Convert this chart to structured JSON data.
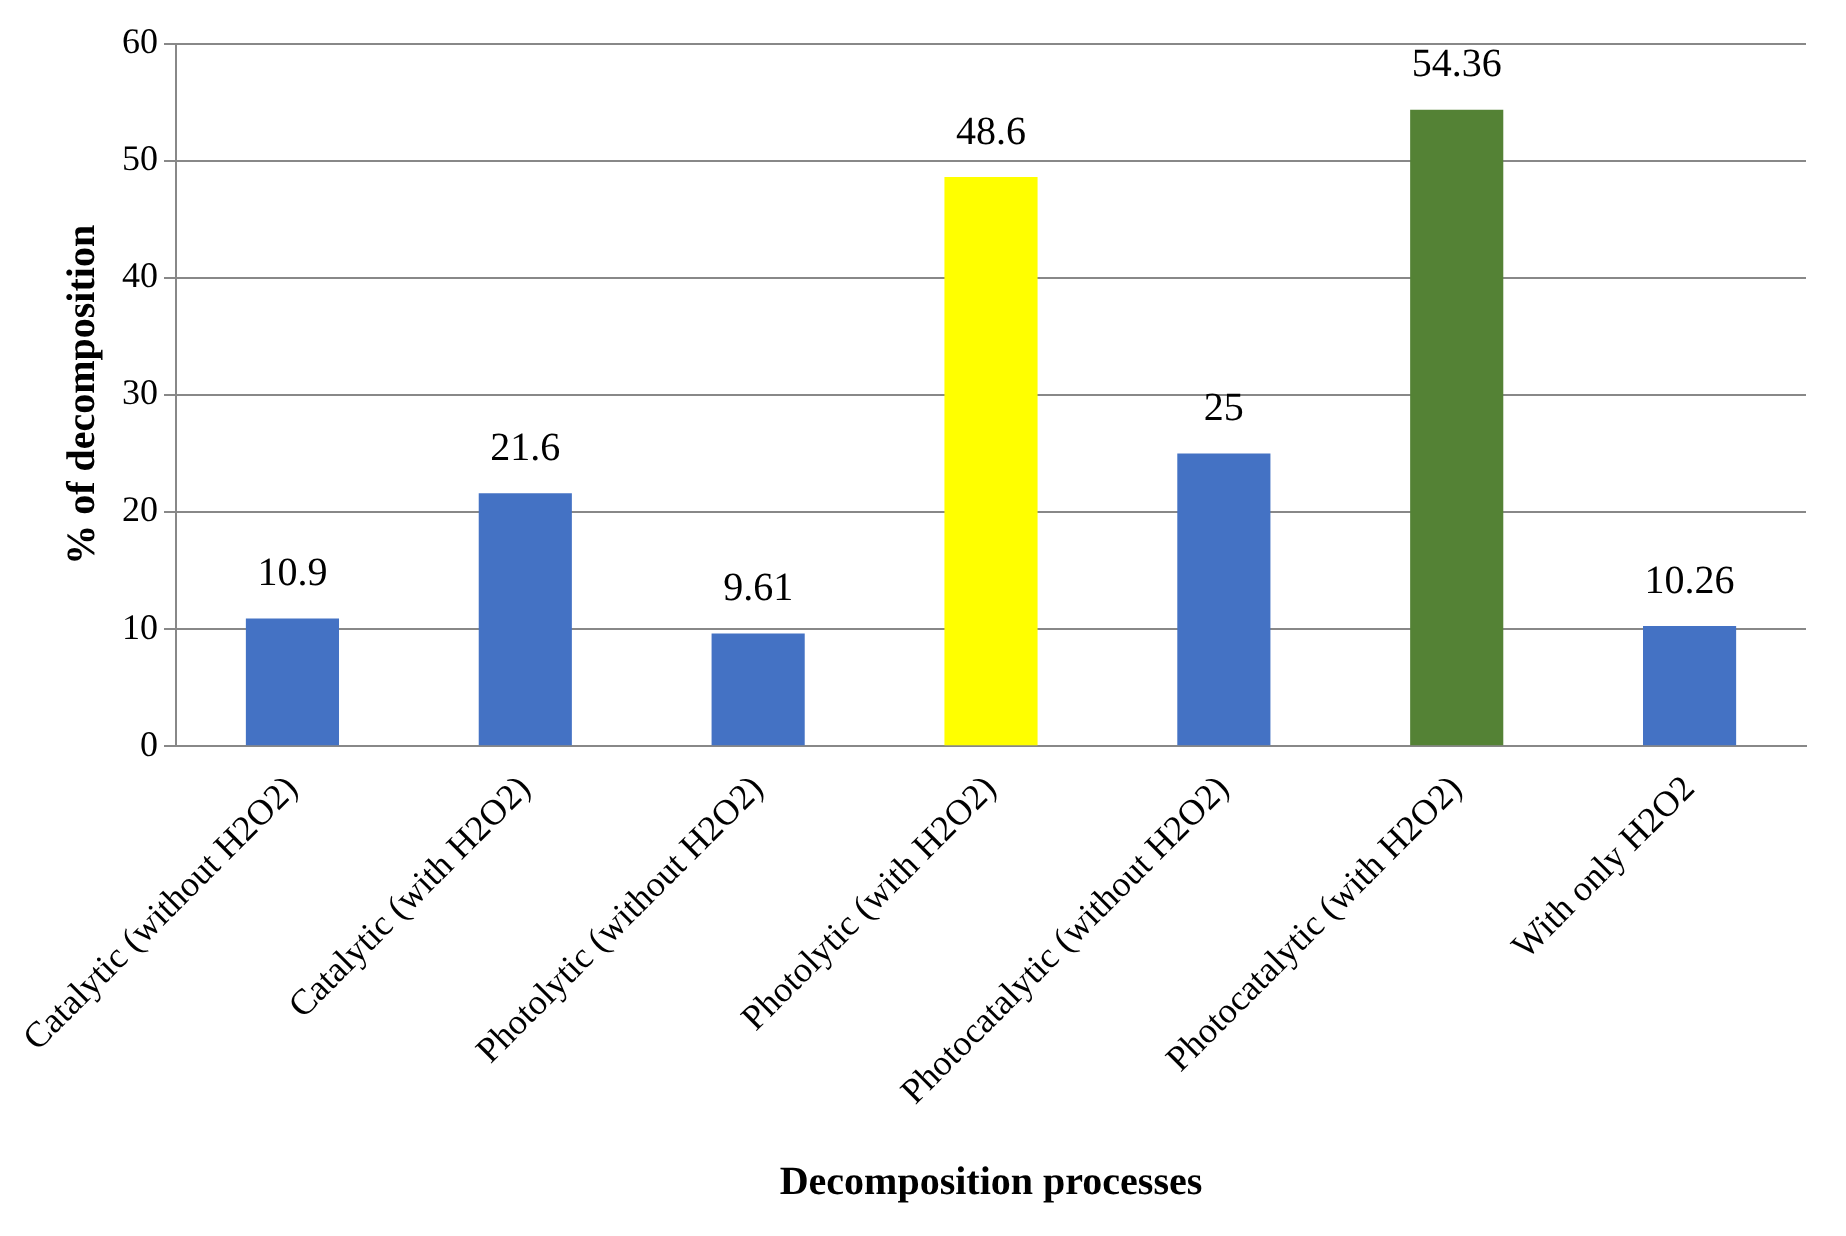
{
  "chart_data": {
    "type": "bar",
    "xlabel": "Decomposition processes",
    "ylabel": "% of decomposition",
    "categories": [
      "Catalytic (without H2O2)",
      "Catalytic (with H2O2)",
      "Photolytic (without H2O2)",
      "Photolytic (with H2O2)",
      "Photocatalytic (without H2O2)",
      "Photocatalytic (with H2O2)",
      "With only H2O2"
    ],
    "values": [
      10.9,
      21.6,
      9.61,
      48.6,
      25,
      54.36,
      10.26
    ],
    "colors": [
      "#4472c4",
      "#4472c4",
      "#4472c4",
      "#ffff00",
      "#4472c4",
      "#548235",
      "#4472c4"
    ],
    "ylim": [
      0,
      60
    ],
    "yticks": [
      0,
      10,
      20,
      30,
      40,
      50,
      60
    ],
    "grid": "y",
    "data_labels": true,
    "legend": false
  }
}
